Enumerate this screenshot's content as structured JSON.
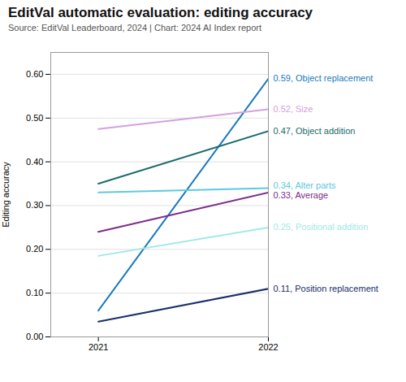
{
  "chart_data": {
    "type": "line",
    "title": "EditVal automatic evaluation: editing accuracy",
    "subtitle": "Source: EditVal Leaderboard, 2024 | Chart: 2024 AI Index report",
    "ylabel": "Editing accuracy",
    "x": [
      2021,
      2022
    ],
    "series": [
      {
        "name": "Object replacement",
        "color": "#1a7abf",
        "values": [
          0.06,
          0.59
        ]
      },
      {
        "name": "Size",
        "color": "#d4a0e0",
        "values": [
          0.475,
          0.52
        ]
      },
      {
        "name": "Object addition",
        "color": "#1a6b6b",
        "values": [
          0.35,
          0.47
        ]
      },
      {
        "name": "Alter parts",
        "color": "#5ec8e0",
        "values": [
          0.33,
          0.34
        ]
      },
      {
        "name": "Average",
        "color": "#7b2d8b",
        "values": [
          0.24,
          0.33
        ]
      },
      {
        "name": "Positional addition",
        "color": "#a0e8e8",
        "values": [
          0.185,
          0.25
        ]
      },
      {
        "name": "Position replacement",
        "color": "#1a2f6b",
        "values": [
          0.035,
          0.11
        ]
      }
    ],
    "xlim": [
      2020.72,
      2022.0
    ],
    "xticks": [
      2021,
      2022
    ],
    "ylim": [
      0.0,
      0.65
    ],
    "yticks": [
      {
        "value": 0.0,
        "label": "0.00"
      },
      {
        "value": 0.1,
        "label": "0.10"
      },
      {
        "value": 0.2,
        "label": "0.20"
      },
      {
        "value": 0.3,
        "label": "0.30"
      },
      {
        "value": 0.4,
        "label": "0.40"
      },
      {
        "value": 0.5,
        "label": "0.50"
      },
      {
        "value": 0.6,
        "label": "0.60"
      }
    ],
    "grid": true,
    "annotations": [
      {
        "text": "0.59, Object replacement",
        "x": 2022,
        "y": 0.59,
        "color": "#1a7abf"
      },
      {
        "text": "0.52, Size",
        "x": 2022,
        "y": 0.52,
        "color": "#d4a0e0"
      },
      {
        "text": "0.47, Object addition",
        "x": 2022,
        "y": 0.47,
        "color": "#1a6b6b"
      },
      {
        "text": "0.34, Alter parts",
        "x": 2022,
        "y": 0.34,
        "color": "#5ec8e0"
      },
      {
        "text": "0.33, Average",
        "x": 2022,
        "y": 0.33,
        "color": "#7b2d8b"
      },
      {
        "text": "0.25, Positional addition",
        "x": 2022,
        "y": 0.25,
        "color": "#a0e8e8"
      },
      {
        "text": "0.11, Position replacement",
        "x": 2022,
        "y": 0.11,
        "color": "#1a2f6b"
      }
    ]
  }
}
